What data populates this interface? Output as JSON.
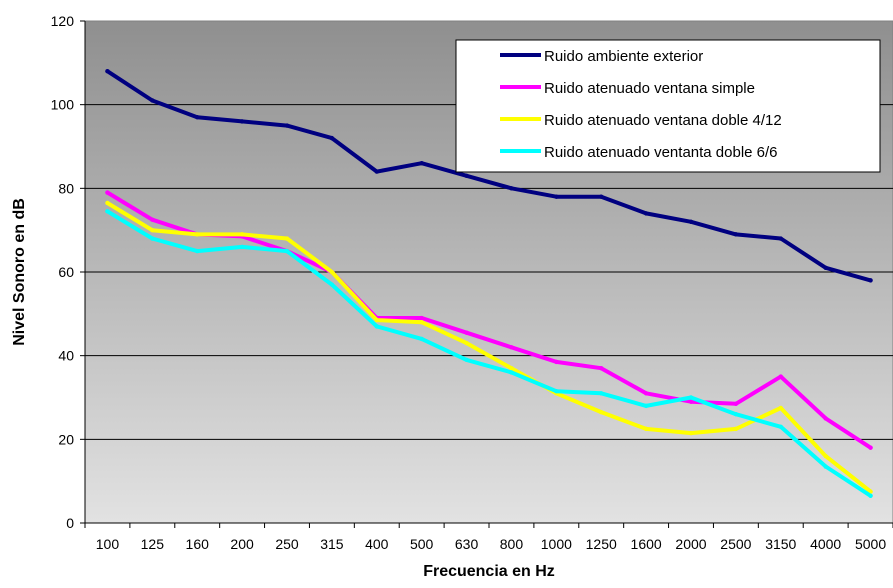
{
  "chart_data": {
    "type": "line",
    "title": "",
    "xlabel": "Frecuencia en Hz",
    "ylabel": "Nivel Sonoro en dB",
    "ylim": [
      0,
      120
    ],
    "yticks": [
      0,
      20,
      40,
      60,
      80,
      100,
      120
    ],
    "grid": "horizontal",
    "legend_position": "top-right",
    "categories": [
      "100",
      "125",
      "160",
      "200",
      "250",
      "315",
      "400",
      "500",
      "630",
      "800",
      "1000",
      "1250",
      "1600",
      "2000",
      "2500",
      "3150",
      "4000",
      "5000"
    ],
    "series": [
      {
        "name": "Ruido ambiente exterior",
        "color": "#000080",
        "values": [
          108,
          101,
          97,
          96,
          95,
          92,
          84,
          86,
          83,
          80,
          78,
          78,
          74,
          72,
          69,
          68,
          61,
          58
        ]
      },
      {
        "name": "Ruido atenuado ventana simple",
        "color": "#FF00FF",
        "values": [
          79,
          72.5,
          69,
          68.5,
          65,
          60,
          49,
          49,
          45.5,
          42,
          38.5,
          37,
          31,
          29,
          28.5,
          35,
          25,
          18
        ]
      },
      {
        "name": "Ruido atenuado ventana doble 4/12",
        "color": "#FFFF00",
        "values": [
          76.5,
          70,
          69,
          69,
          68,
          60,
          48.5,
          48,
          43,
          37,
          31,
          26.5,
          22.5,
          21.5,
          22.5,
          27.5,
          16,
          7.5
        ]
      },
      {
        "name": "Ruido atenuado ventanta doble 6/6",
        "color": "#00FFFF",
        "values": [
          74.5,
          68,
          65,
          66,
          65,
          57,
          47,
          44,
          39,
          36,
          31.5,
          31,
          28,
          30,
          26,
          23,
          13.5,
          6.5
        ]
      }
    ]
  }
}
